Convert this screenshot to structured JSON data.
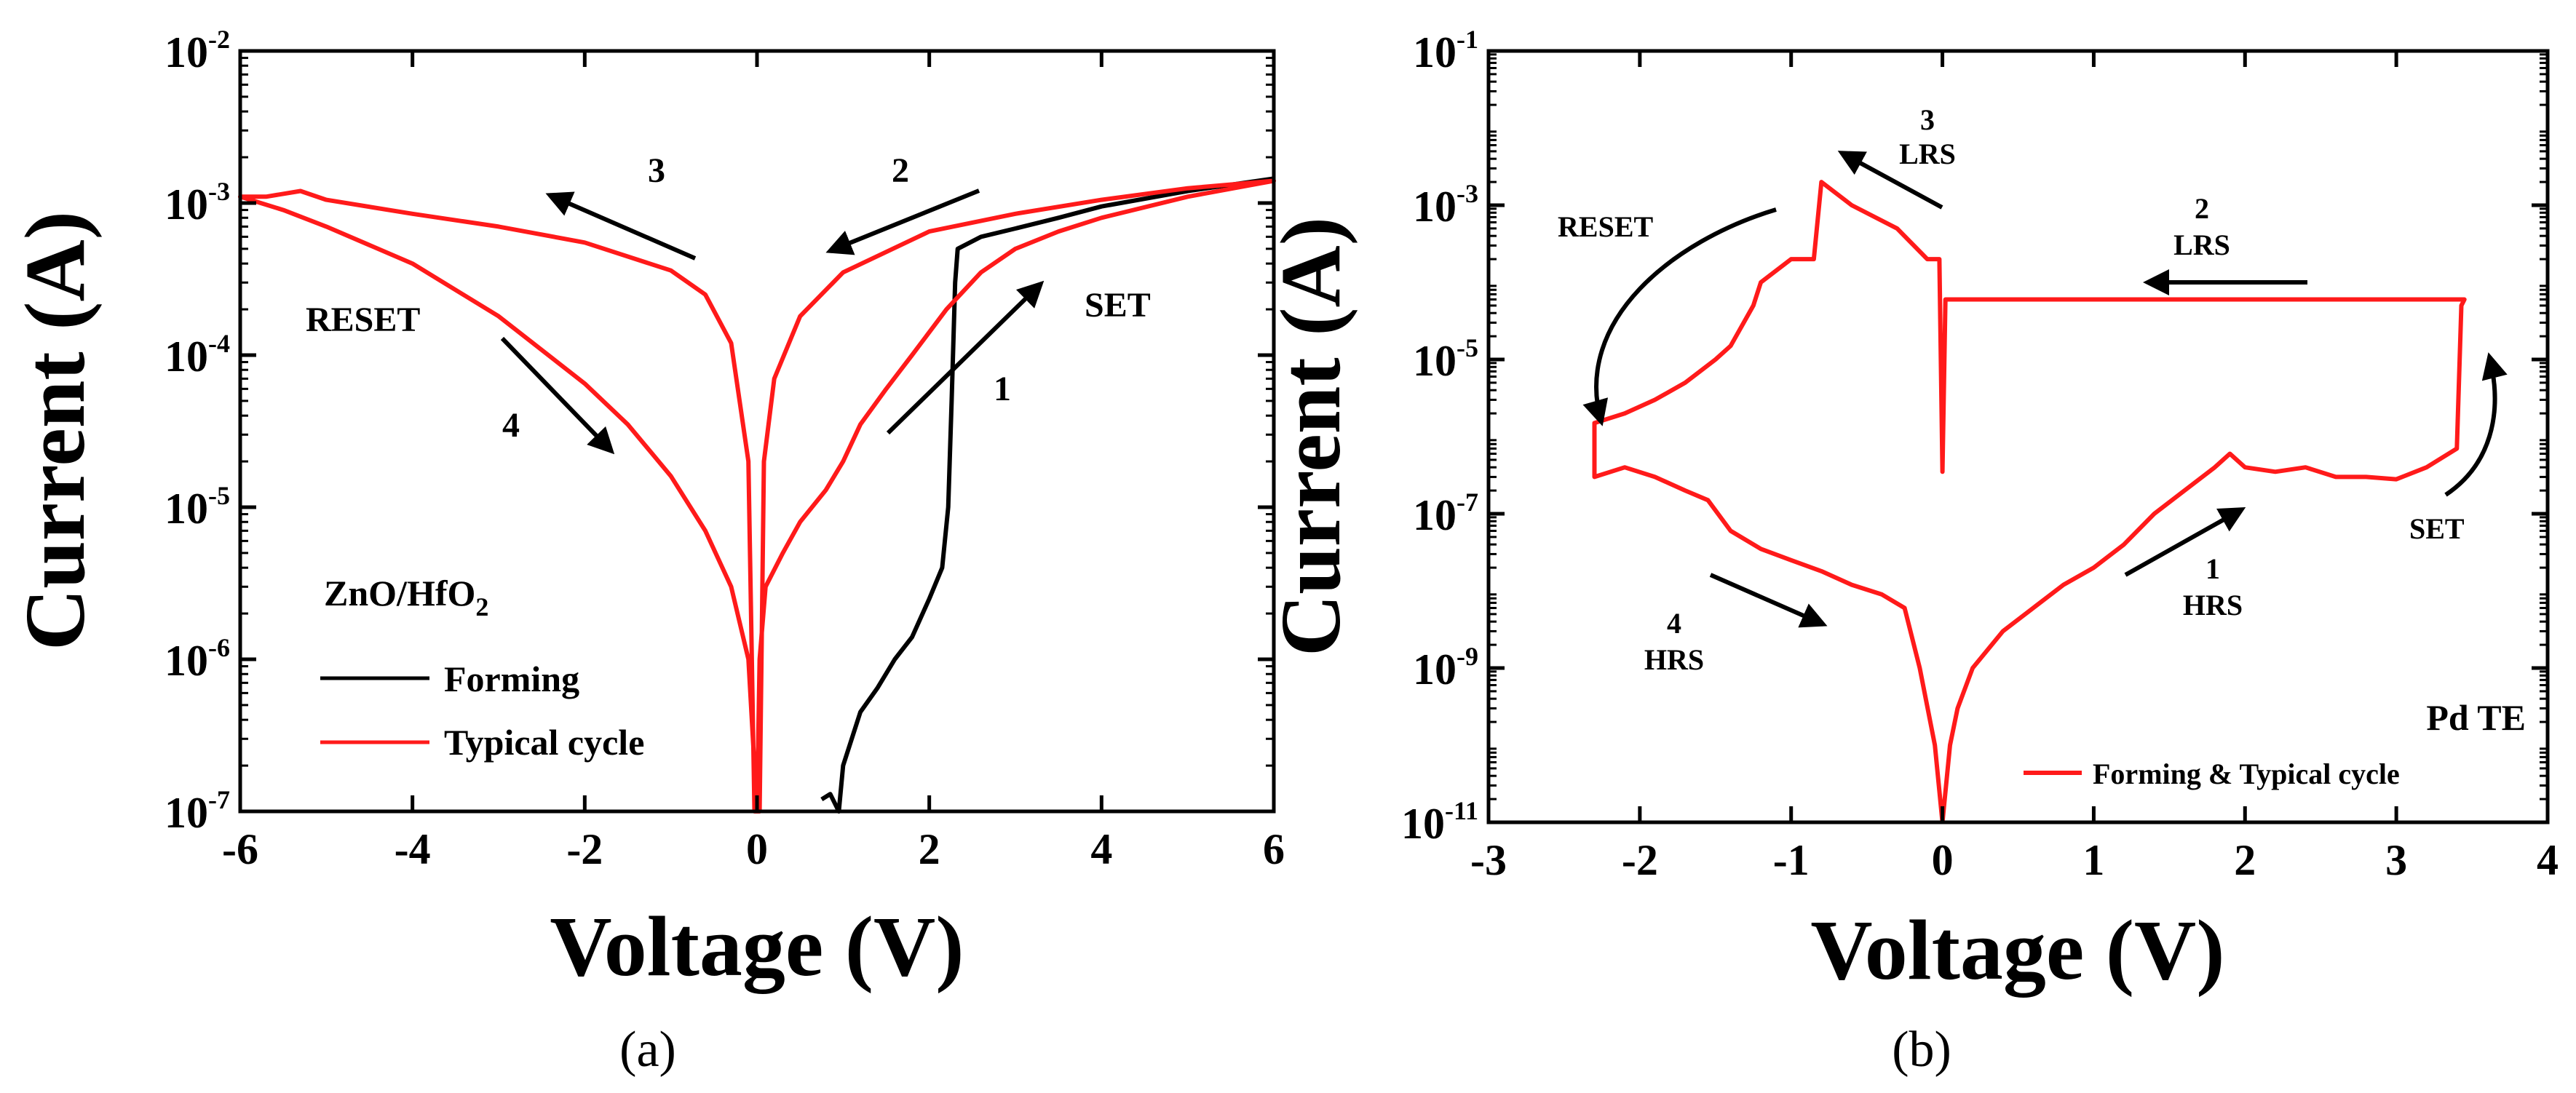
{
  "colors": {
    "red": "#ff1a1a",
    "black": "#000000"
  },
  "chart_data": [
    {
      "type": "line",
      "panel_label": "a",
      "xlabel": "Voltage (V)",
      "ylabel": "Current (A)",
      "xlim": [
        -6,
        6
      ],
      "ylim": [
        1e-07,
        0.01
      ],
      "yscale": "log",
      "x_ticks": [
        -6,
        -4,
        -2,
        0,
        2,
        4,
        6
      ],
      "y_ticks": [
        {
          "base": "10",
          "exp": "-7"
        },
        {
          "base": "10",
          "exp": "-6"
        },
        {
          "base": "10",
          "exp": "-5"
        },
        {
          "base": "10",
          "exp": "-4"
        },
        {
          "base": "10",
          "exp": "-3"
        },
        {
          "base": "10",
          "exp": "-2"
        }
      ],
      "legend_title": "ZnO/HfO₂",
      "legend_title_main": "ZnO/HfO",
      "legend_title_sub": "2",
      "legend": [
        "Forming",
        "Typical cycle"
      ],
      "annotations": [
        "1",
        "2",
        "3",
        "4",
        "SET",
        "RESET"
      ],
      "series": [
        {
          "name": "Forming",
          "color": "#000000",
          "points": [
            [
              0.75,
              1.2e-07
            ],
            [
              0.85,
              1.3e-07
            ],
            [
              0.95,
              1e-07
            ],
            [
              1.0,
              2e-07
            ],
            [
              1.2,
              4.5e-07
            ],
            [
              1.4,
              6.5e-07
            ],
            [
              1.6,
              1e-06
            ],
            [
              1.8,
              1.4e-06
            ],
            [
              2.0,
              2.5e-06
            ],
            [
              2.15,
              4e-06
            ],
            [
              2.22,
              1e-05
            ],
            [
              2.26,
              5e-05
            ],
            [
              2.3,
              0.0003
            ],
            [
              2.33,
              0.0005
            ],
            [
              2.6,
              0.0006
            ],
            [
              3.0,
              0.00068
            ],
            [
              3.5,
              0.0008
            ],
            [
              4.0,
              0.00095
            ],
            [
              5.0,
              0.0012
            ],
            [
              6.0,
              0.00145
            ]
          ]
        },
        {
          "name": "Typical cycle",
          "color": "#ff1a1a",
          "points": [
            [
              0.0,
              1e-07
            ],
            [
              0.03,
              1e-06
            ],
            [
              0.1,
              3e-06
            ],
            [
              0.3,
              5e-06
            ],
            [
              0.5,
              8e-06
            ],
            [
              0.8,
              1.3e-05
            ],
            [
              1.0,
              2e-05
            ],
            [
              1.2,
              3.5e-05
            ],
            [
              1.5,
              6e-05
            ],
            [
              1.8,
              0.0001
            ],
            [
              2.2,
              0.0002
            ],
            [
              2.6,
              0.00035
            ],
            [
              3.0,
              0.0005
            ],
            [
              3.5,
              0.00065
            ],
            [
              4.0,
              0.0008
            ],
            [
              5.0,
              0.0011
            ],
            [
              6.0,
              0.0014
            ],
            [
              5.0,
              0.00125
            ],
            [
              4.0,
              0.00105
            ],
            [
              3.0,
              0.00085
            ],
            [
              2.0,
              0.00065
            ],
            [
              1.0,
              0.00035
            ],
            [
              0.5,
              0.00018
            ],
            [
              0.2,
              7e-05
            ],
            [
              0.08,
              2e-05
            ],
            [
              0.03,
              1e-07
            ],
            [
              -0.03,
              1e-07
            ],
            [
              -0.1,
              2e-05
            ],
            [
              -0.3,
              0.00012
            ],
            [
              -0.6,
              0.00025
            ],
            [
              -1.0,
              0.00036
            ],
            [
              -2.0,
              0.00055
            ],
            [
              -3.0,
              0.0007
            ],
            [
              -4.0,
              0.00085
            ],
            [
              -5.0,
              0.00105
            ],
            [
              -5.3,
              0.0012
            ],
            [
              -5.7,
              0.0011
            ],
            [
              -6.0,
              0.0011
            ],
            [
              -5.5,
              0.0009
            ],
            [
              -5.0,
              0.0007
            ],
            [
              -4.0,
              0.0004
            ],
            [
              -3.0,
              0.00018
            ],
            [
              -2.0,
              6.5e-05
            ],
            [
              -1.5,
              3.5e-05
            ],
            [
              -1.0,
              1.6e-05
            ],
            [
              -0.6,
              7e-06
            ],
            [
              -0.3,
              3e-06
            ],
            [
              -0.1,
              1e-06
            ],
            [
              0.0,
              1e-07
            ]
          ]
        }
      ]
    },
    {
      "type": "line",
      "panel_label": "b",
      "xlabel": "Voltage (V)",
      "ylabel": "Current (A)",
      "xlim": [
        -3,
        4
      ],
      "ylim": [
        1e-11,
        0.1
      ],
      "yscale": "log",
      "x_ticks": [
        -3,
        -2,
        -1,
        0,
        1,
        2,
        3,
        4
      ],
      "y_ticks": [
        {
          "base": "10",
          "exp": "-11"
        },
        {
          "base": "10",
          "exp": "-9"
        },
        {
          "base": "10",
          "exp": "-7"
        },
        {
          "base": "10",
          "exp": "-5"
        },
        {
          "base": "10",
          "exp": "-3"
        },
        {
          "base": "10",
          "exp": "-1"
        }
      ],
      "legend_title": "Pd TE",
      "legend": [
        "Forming & Typical cycle"
      ],
      "annotations": [
        "1",
        "HRS",
        "2",
        "LRS",
        "3",
        "LRS",
        "4",
        "HRS",
        "SET",
        "RESET"
      ],
      "series": [
        {
          "name": "Forming & Typical cycle",
          "color": "#ff1a1a",
          "points": [
            [
              0.0,
              1e-11
            ],
            [
              0.05,
              1e-10
            ],
            [
              0.1,
              3e-10
            ],
            [
              0.2,
              1e-09
            ],
            [
              0.4,
              3e-09
            ],
            [
              0.6,
              6e-09
            ],
            [
              0.8,
              1.2e-08
            ],
            [
              1.0,
              2e-08
            ],
            [
              1.2,
              4e-08
            ],
            [
              1.4,
              1e-07
            ],
            [
              1.6,
              2e-07
            ],
            [
              1.8,
              4e-07
            ],
            [
              1.9,
              6e-07
            ],
            [
              2.0,
              4e-07
            ],
            [
              2.2,
              3.5e-07
            ],
            [
              2.4,
              4e-07
            ],
            [
              2.6,
              3e-07
            ],
            [
              2.8,
              3e-07
            ],
            [
              3.0,
              2.8e-07
            ],
            [
              3.2,
              4e-07
            ],
            [
              3.4,
              7e-07
            ],
            [
              3.43,
              5e-05
            ],
            [
              3.45,
              6e-05
            ],
            [
              2.0,
              6e-05
            ],
            [
              1.0,
              6e-05
            ],
            [
              0.05,
              6e-05
            ],
            [
              0.02,
              6e-05
            ],
            [
              0.0,
              3.5e-07
            ],
            [
              -0.02,
              0.0002
            ],
            [
              -0.1,
              0.0002
            ],
            [
              -0.3,
              0.0005
            ],
            [
              -0.6,
              0.001
            ],
            [
              -0.8,
              0.002
            ],
            [
              -0.85,
              0.0002
            ],
            [
              -1.0,
              0.0002
            ],
            [
              -1.2,
              0.0001
            ],
            [
              -1.25,
              5e-05
            ],
            [
              -1.4,
              1.5e-05
            ],
            [
              -1.5,
              1e-05
            ],
            [
              -1.7,
              5e-06
            ],
            [
              -1.9,
              3e-06
            ],
            [
              -2.1,
              2e-06
            ],
            [
              -2.3,
              1.5e-06
            ],
            [
              -2.3,
              3e-07
            ],
            [
              -2.1,
              4e-07
            ],
            [
              -1.9,
              3e-07
            ],
            [
              -1.7,
              2e-07
            ],
            [
              -1.55,
              1.5e-07
            ],
            [
              -1.4,
              6e-08
            ],
            [
              -1.2,
              3.5e-08
            ],
            [
              -1.0,
              2.5e-08
            ],
            [
              -0.8,
              1.8e-08
            ],
            [
              -0.6,
              1.2e-08
            ],
            [
              -0.4,
              9e-09
            ],
            [
              -0.25,
              6e-09
            ],
            [
              -0.15,
              1e-09
            ],
            [
              -0.05,
              1e-10
            ],
            [
              0.0,
              1e-11
            ]
          ]
        }
      ]
    }
  ],
  "captions": [
    "(a)",
    "(b)"
  ]
}
